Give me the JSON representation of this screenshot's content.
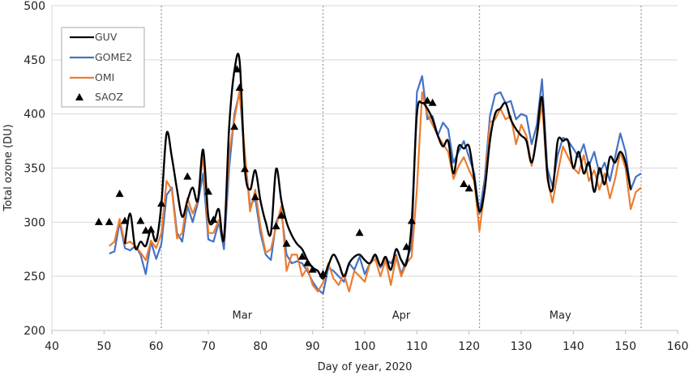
{
  "chart_data": {
    "type": "line",
    "xlabel": "Day of year, 2020",
    "ylabel": "Total ozone (DU)",
    "xlim": [
      40,
      160
    ],
    "ylim": [
      200,
      500
    ],
    "xticks": [
      40,
      50,
      60,
      70,
      80,
      90,
      100,
      110,
      120,
      130,
      140,
      150,
      160
    ],
    "yticks": [
      200,
      250,
      300,
      350,
      400,
      450,
      500
    ],
    "grid": "horizontal",
    "legend_position": "top-left",
    "month_separators": [
      61,
      92,
      122,
      153
    ],
    "month_labels": [
      {
        "label": "Mar",
        "x": 76.5
      },
      {
        "label": "Apr",
        "x": 107
      },
      {
        "label": "May",
        "x": 137.5
      }
    ],
    "series": [
      {
        "name": "GUV",
        "style": "smooth-line",
        "color": "#000000",
        "x": [
          54,
          55,
          56,
          57,
          58,
          59,
          60,
          61,
          62,
          63,
          64,
          65,
          66,
          67,
          68,
          69,
          70,
          71,
          72,
          73,
          74,
          75,
          76,
          77,
          78,
          79,
          80,
          81,
          82,
          83,
          84,
          85,
          86,
          87,
          88,
          89,
          90,
          91,
          92,
          93,
          94,
          95,
          96,
          97,
          98,
          99,
          100,
          101,
          102,
          103,
          104,
          105,
          106,
          107,
          108,
          109,
          110,
          111,
          112,
          113,
          114,
          115,
          116,
          117,
          118,
          119,
          120,
          121,
          122,
          123,
          124,
          125,
          126,
          127,
          128,
          129,
          130,
          131,
          132,
          133,
          134,
          135,
          136,
          137,
          138,
          139,
          140,
          141,
          142,
          143,
          144,
          145,
          146,
          147,
          148,
          149,
          150,
          151
        ],
        "y": [
          280,
          308,
          276,
          282,
          278,
          293,
          283,
          317,
          382,
          360,
          330,
          305,
          320,
          332,
          320,
          367,
          305,
          300,
          312,
          285,
          388,
          440,
          449,
          350,
          330,
          348,
          320,
          300,
          290,
          349,
          320,
          300,
          288,
          280,
          275,
          265,
          258,
          255,
          248,
          260,
          270,
          262,
          250,
          262,
          268,
          270,
          265,
          262,
          270,
          260,
          268,
          256,
          275,
          265,
          262,
          300,
          400,
          410,
          405,
          395,
          380,
          370,
          375,
          345,
          370,
          368,
          370,
          340,
          310,
          330,
          375,
          400,
          405,
          410,
          395,
          386,
          380,
          375,
          355,
          380,
          415,
          345,
          330,
          375,
          375,
          375,
          350,
          365,
          345,
          355,
          328,
          350,
          335,
          360,
          355,
          365,
          355,
          330
        ]
      },
      {
        "name": "GOME2",
        "style": "line",
        "color": "#4472C4",
        "x": [
          51,
          52,
          53,
          54,
          55,
          56,
          57,
          58,
          59,
          60,
          61,
          62,
          63,
          64,
          65,
          66,
          67,
          68,
          69,
          70,
          71,
          72,
          73,
          74,
          75,
          76,
          77,
          78,
          79,
          80,
          81,
          82,
          83,
          84,
          85,
          86,
          87,
          88,
          89,
          90,
          91,
          92,
          93,
          94,
          95,
          96,
          97,
          98,
          99,
          100,
          101,
          102,
          103,
          104,
          105,
          106,
          107,
          108,
          109,
          110,
          111,
          112,
          113,
          114,
          115,
          116,
          117,
          118,
          119,
          120,
          121,
          122,
          123,
          124,
          125,
          126,
          127,
          128,
          129,
          130,
          131,
          132,
          133,
          134,
          135,
          136,
          137,
          138,
          139,
          140,
          141,
          142,
          143,
          144,
          145,
          146,
          147,
          148,
          149,
          150,
          151,
          152,
          153
        ],
        "y": [
          271,
          273,
          300,
          276,
          274,
          278,
          270,
          252,
          282,
          266,
          280,
          325,
          332,
          290,
          282,
          315,
          300,
          318,
          345,
          284,
          282,
          300,
          275,
          350,
          400,
          420,
          360,
          315,
          322,
          290,
          270,
          265,
          300,
          310,
          270,
          262,
          264,
          262,
          255,
          245,
          238,
          234,
          258,
          255,
          250,
          245,
          262,
          256,
          268,
          252,
          262,
          270,
          258,
          266,
          262,
          270,
          252,
          265,
          278,
          420,
          435,
          395,
          398,
          380,
          392,
          386,
          355,
          365,
          375,
          360,
          345,
          308,
          340,
          398,
          418,
          420,
          410,
          412,
          395,
          400,
          398,
          372,
          390,
          432,
          350,
          333,
          362,
          378,
          375,
          368,
          360,
          372,
          352,
          365,
          345,
          355,
          338,
          360,
          382,
          365,
          330,
          342,
          345
        ]
      },
      {
        "name": "OMI",
        "style": "line",
        "color": "#ED7D31",
        "x": [
          51,
          52,
          53,
          54,
          55,
          56,
          57,
          58,
          59,
          60,
          61,
          62,
          63,
          64,
          65,
          66,
          67,
          68,
          69,
          70,
          71,
          72,
          73,
          74,
          75,
          76,
          77,
          78,
          79,
          80,
          81,
          82,
          83,
          84,
          85,
          86,
          87,
          88,
          89,
          90,
          91,
          92,
          93,
          94,
          95,
          96,
          97,
          98,
          99,
          100,
          101,
          102,
          103,
          104,
          105,
          106,
          107,
          108,
          109,
          110,
          111,
          112,
          113,
          114,
          115,
          116,
          117,
          118,
          119,
          120,
          121,
          122,
          123,
          124,
          125,
          126,
          127,
          128,
          129,
          130,
          131,
          132,
          133,
          134,
          135,
          136,
          137,
          138,
          139,
          140,
          141,
          142,
          143,
          144,
          145,
          146,
          147,
          148,
          149,
          150,
          151,
          152,
          153
        ],
        "y": [
          278,
          282,
          303,
          280,
          282,
          278,
          272,
          265,
          283,
          276,
          290,
          338,
          330,
          285,
          290,
          322,
          308,
          320,
          363,
          290,
          290,
          302,
          282,
          365,
          395,
          422,
          365,
          310,
          330,
          296,
          272,
          275,
          296,
          315,
          255,
          270,
          270,
          250,
          258,
          242,
          236,
          244,
          262,
          248,
          242,
          252,
          236,
          255,
          250,
          245,
          262,
          266,
          250,
          265,
          242,
          268,
          250,
          262,
          268,
          330,
          420,
          400,
          390,
          380,
          372,
          365,
          340,
          352,
          360,
          348,
          338,
          292,
          330,
          392,
          395,
          405,
          395,
          398,
          372,
          390,
          380,
          352,
          378,
          410,
          340,
          318,
          345,
          370,
          360,
          350,
          345,
          362,
          338,
          348,
          330,
          345,
          322,
          340,
          365,
          350,
          312,
          328,
          332
        ]
      },
      {
        "name": "SAOZ",
        "style": "triangle-markers",
        "color": "#000000",
        "x": [
          49,
          51,
          53,
          54,
          57,
          58,
          59,
          61,
          66,
          70,
          71,
          75,
          75.5,
          76,
          77,
          79,
          83,
          84,
          85,
          88,
          89,
          90,
          92,
          99,
          108,
          109,
          112,
          113,
          119,
          120
        ],
        "y": [
          300,
          300,
          326,
          301,
          301,
          292,
          293,
          317,
          342,
          328,
          302,
          388,
          441,
          424,
          349,
          323,
          296,
          306,
          280,
          268,
          262,
          256,
          252,
          290,
          277,
          301,
          412,
          410,
          335,
          331
        ]
      }
    ]
  }
}
